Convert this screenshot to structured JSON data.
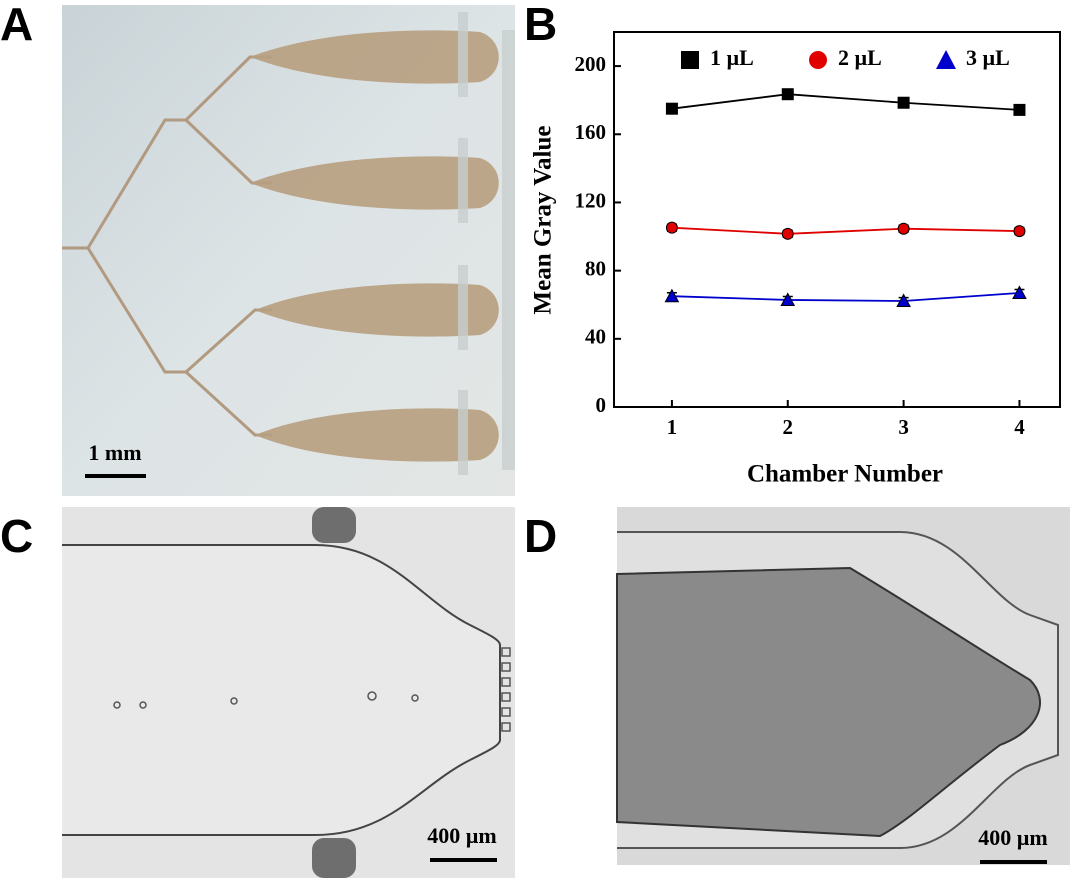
{
  "panels": {
    "a": {
      "label": "A",
      "scale_bar": "1 mm"
    },
    "b": {
      "label": "B"
    },
    "c": {
      "label": "C",
      "scale_bar": "400 µm"
    },
    "d": {
      "label": "D",
      "scale_bar": "400 µm"
    }
  },
  "chart_data": {
    "type": "line",
    "x_label": "Chamber Number",
    "y_label": "Mean Gray Value",
    "x": [
      1,
      2,
      3,
      4
    ],
    "xlim": [
      0.5,
      4.35
    ],
    "xticks": [
      1,
      2,
      3,
      4
    ],
    "ylim": [
      0,
      220
    ],
    "yticks": [
      0,
      40,
      80,
      120,
      160,
      200
    ],
    "series": [
      {
        "name": "1 µL",
        "color": "#000000",
        "marker": "square",
        "values": [
          175,
          183.5,
          178.5,
          174.3
        ],
        "errors": [
          2,
          2,
          2,
          2
        ]
      },
      {
        "name": "2 µL",
        "color": "#e00000",
        "marker": "circle",
        "values": [
          105.2,
          101.6,
          104.6,
          103.2
        ],
        "errors": [
          2,
          2,
          2,
          2
        ]
      },
      {
        "name": "3 µL",
        "color": "#0000cc",
        "marker": "triangle",
        "values": [
          65,
          62.8,
          62.2,
          66.9
        ],
        "errors": [
          2,
          2,
          2,
          2
        ]
      }
    ],
    "legend": "top"
  }
}
